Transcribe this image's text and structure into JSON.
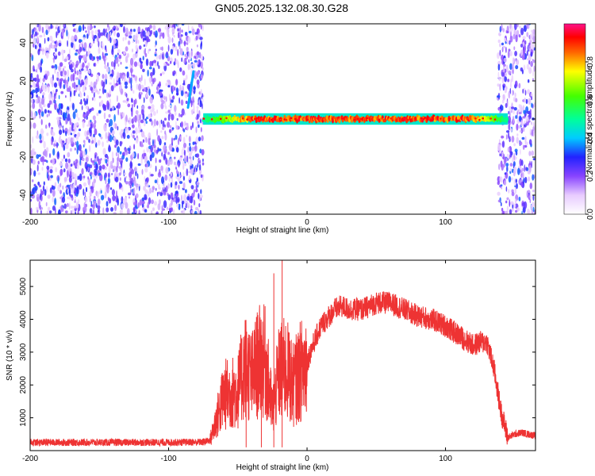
{
  "title": "GN05.2025.132.08.30.G28",
  "chart_data": [
    {
      "type": "heatmap",
      "xlabel": "Height of straight line (km)",
      "ylabel": "Frequency (Hz)",
      "xlim": [
        -200,
        165
      ],
      "ylim": [
        -50,
        50
      ],
      "xticks": [
        -200,
        -100,
        0,
        100
      ],
      "yticks": [
        -40,
        -20,
        0,
        20,
        40
      ],
      "colorbar": {
        "label": "Normalized spectral amplitude",
        "range": [
          0,
          1
        ],
        "ticks": [
          0.0,
          0.2,
          0.4,
          0.6,
          0.8
        ],
        "tick_labels": [
          "0.0",
          "0.2",
          "0.4",
          "0.6",
          "0.8"
        ]
      },
      "signal_band": {
        "x_start": -75,
        "x_end": 145,
        "frequency": 0,
        "amplitude_peak": 0.95
      },
      "noise_regions": [
        [
          -200,
          -75
        ],
        [
          138,
          165
        ]
      ],
      "streak": {
        "x": [
          -86,
          -82
        ],
        "frequency": [
          6,
          25
        ]
      }
    },
    {
      "type": "line",
      "xlabel": "Height of straight line (km)",
      "ylabel": "SNR (10 * v/v)",
      "xlim": [
        -200,
        165
      ],
      "ylim": [
        0,
        5800
      ],
      "xticks": [
        -200,
        -100,
        0,
        100
      ],
      "yticks": [
        1000,
        2000,
        3000,
        4000,
        5000
      ],
      "grid": false,
      "series": [
        {
          "color": "#ee3333",
          "x": [
            -200,
            -150,
            -100,
            -75,
            -70,
            -60,
            -50,
            -45,
            -40,
            -35,
            -30,
            -25,
            -20,
            -15,
            -10,
            -5,
            0,
            5,
            10,
            20,
            25,
            30,
            40,
            50,
            60,
            70,
            80,
            90,
            100,
            110,
            120,
            125,
            130,
            135,
            140,
            145,
            150,
            155,
            160,
            165
          ],
          "y": [
            250,
            250,
            250,
            260,
            320,
            1700,
            1800,
            2600,
            2200,
            2700,
            2700,
            1200,
            2400,
            2500,
            2000,
            2400,
            2700,
            3300,
            3800,
            4300,
            4400,
            4300,
            4300,
            4500,
            4500,
            4300,
            4100,
            4000,
            3800,
            3500,
            3200,
            3300,
            3300,
            2500,
            1200,
            400,
            500,
            550,
            500,
            450
          ]
        }
      ],
      "spikes": [
        {
          "x": -44,
          "y": 3200
        },
        {
          "x": -33,
          "y": 3000
        },
        {
          "x": -24,
          "y": 5400
        },
        {
          "x": -18,
          "y": 5800
        }
      ]
    }
  ]
}
